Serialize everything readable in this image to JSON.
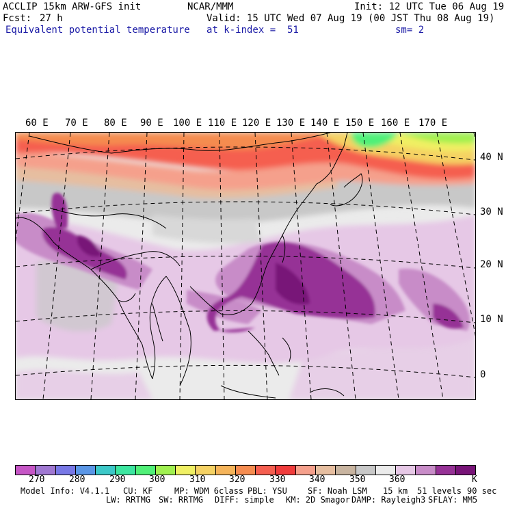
{
  "header": {
    "model_title": "ACCLIP 15km ARW-GFS init",
    "institution": "NCAR/MMM",
    "init_time": "Init: 12 UTC Tue 06 Aug 19",
    "forecast_label": "Fcst:",
    "forecast_hours": "27 h",
    "valid_time": "Valid: 15 UTC Wed 07 Aug 19 (00 JST Thu 08 Aug 19)",
    "field_name": "Equivalent potential temperature",
    "level": "at k-index =  51",
    "smoothing": "sm= 2"
  },
  "map": {
    "longitude_labels": [
      "60 E",
      "70 E",
      "80 E",
      "90 E",
      "100 E",
      "110 E",
      "120 E",
      "130 E",
      "140 E",
      "150 E",
      "160 E",
      "170 E"
    ],
    "latitude_labels": [
      "40 N",
      "30 N",
      "20 N",
      "10 N",
      "0"
    ]
  },
  "colorbar": {
    "colors": [
      "#c656c6",
      "#a078d2",
      "#7878e6",
      "#5a96e6",
      "#3cc8c8",
      "#3ce6a0",
      "#50f078",
      "#a0f050",
      "#f0f064",
      "#f5d264",
      "#f5b45a",
      "#f58c50",
      "#f55f50",
      "#f03c3c",
      "#f5a08c",
      "#e6bea0",
      "#c8b4a0",
      "#c8c8c8",
      "#ebebeb",
      "#e6c8e6",
      "#c88cc8",
      "#963296",
      "#781478"
    ],
    "labels": [
      "270",
      "280",
      "290",
      "300",
      "310",
      "320",
      "330",
      "340",
      "350",
      "360"
    ],
    "unit": "K"
  },
  "footer": {
    "line1": [
      "Model Info: V4.1.1",
      "CU: KF",
      "MP: WDM 6class",
      "PBL: YSU",
      "SF: Noah LSM",
      "15 km",
      "51 levels",
      "90 sec"
    ],
    "line2": [
      "LW: RRTMG",
      "SW: RRTMG",
      "DIFF: simple",
      "KM: 2D Smagor",
      "DAMP: Rayleigh3",
      "SFLAY: MM5"
    ]
  }
}
